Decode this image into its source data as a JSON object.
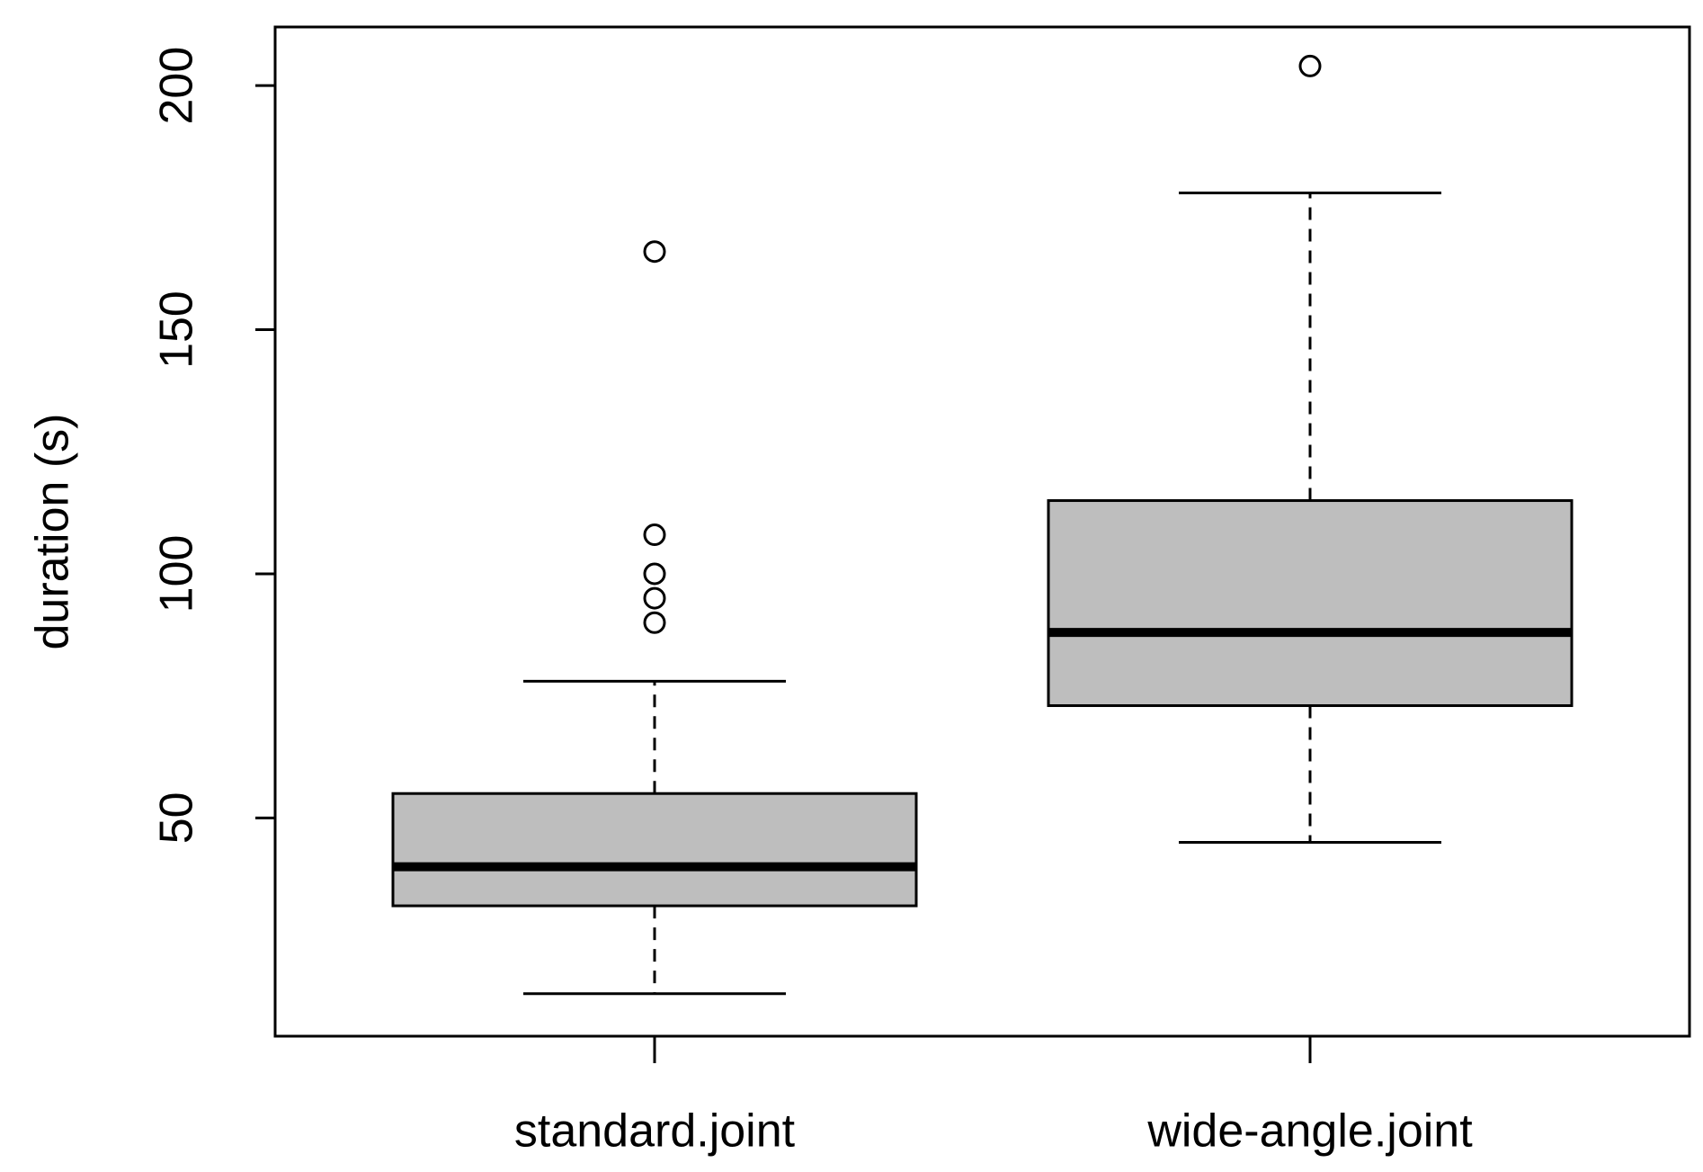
{
  "chart_data": {
    "type": "box",
    "y_label": "duration (s)",
    "categories": [
      "standard.joint",
      "wide-angle.joint"
    ],
    "boxes": [
      {
        "whislo": 14,
        "q1": 32,
        "median": 40,
        "q3": 55,
        "whishi": 78,
        "outliers": [
          90,
          95,
          100,
          108,
          166
        ]
      },
      {
        "whislo": 45,
        "q1": 73,
        "median": 88,
        "q3": 115,
        "whishi": 178,
        "outliers": [
          204
        ]
      }
    ],
    "color": "#bebebe",
    "ylim": [
      5.3,
      212
    ],
    "yticks": [
      50,
      100,
      150,
      200
    ],
    "grid": false
  }
}
